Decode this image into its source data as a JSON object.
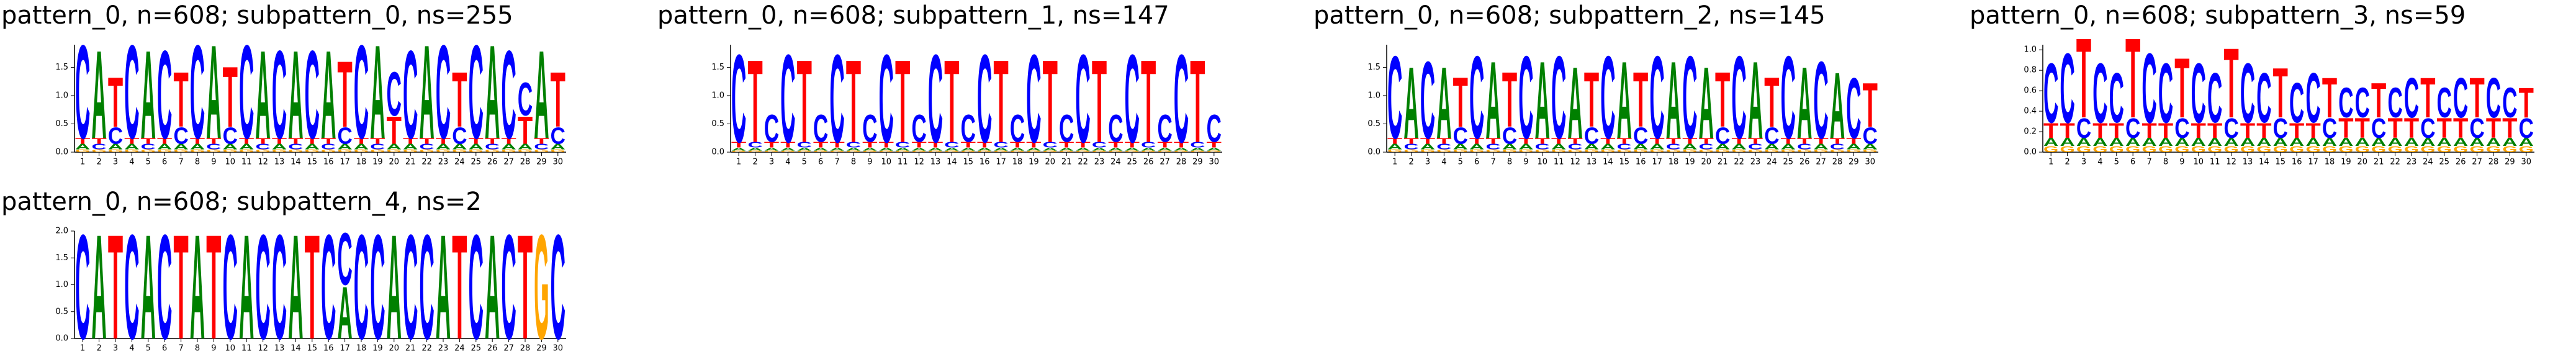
{
  "chart_data": [
    {
      "type": "logo",
      "title": "pattern_0, n=608; subpattern_0, ns=255",
      "xticks": [
        1,
        2,
        3,
        4,
        5,
        6,
        7,
        8,
        9,
        10,
        11,
        12,
        13,
        14,
        15,
        16,
        17,
        18,
        19,
        20,
        21,
        22,
        23,
        24,
        25,
        26,
        27,
        28,
        29,
        30
      ],
      "ylim": [
        0,
        1.9
      ],
      "yticks": [
        {
          "value": 0,
          "label": "0.0"
        },
        {
          "value": 0.5,
          "label": "0.5"
        },
        {
          "value": 1,
          "label": "1.0"
        },
        {
          "value": 1.5,
          "label": "1.5"
        }
      ],
      "series": [
        {
          "name": "A",
          "color": "#008000",
          "values": [
            0.1,
            1.6,
            0.1,
            0.1,
            1.6,
            0.1,
            0.1,
            0.1,
            1.7,
            0.1,
            0.1,
            1.6,
            0.1,
            1.6,
            0.1,
            1.6,
            0.1,
            0.1,
            1.7,
            0.1,
            0.1,
            1.7,
            0.1,
            0.1,
            0.1,
            1.7,
            0.1,
            0.1,
            1.6,
            0.1
          ]
        },
        {
          "name": "C",
          "color": "#0000ff",
          "values": [
            1.7,
            0.1,
            0.3,
            1.7,
            0.1,
            1.6,
            0.3,
            1.7,
            0.1,
            0.3,
            1.7,
            0.1,
            1.6,
            0.1,
            1.6,
            0.1,
            0.3,
            1.7,
            0.1,
            0.8,
            1.6,
            0.1,
            1.7,
            0.3,
            1.7,
            0.1,
            1.6,
            0.6,
            0.1,
            0.3
          ]
        },
        {
          "name": "G",
          "color": "#ffa500",
          "values": [
            0.05,
            0.05,
            0.05,
            0.05,
            0.05,
            0.05,
            0.05,
            0.05,
            0.05,
            0.05,
            0.05,
            0.05,
            0.05,
            0.05,
            0.05,
            0.05,
            0.05,
            0.05,
            0.05,
            0.05,
            0.05,
            0.05,
            0.05,
            0.05,
            0.05,
            0.05,
            0.05,
            0.05,
            0.05,
            0.05
          ]
        },
        {
          "name": "T",
          "color": "#ff0000",
          "values": [
            0.1,
            0.1,
            0.9,
            0.1,
            0.1,
            0.1,
            1.0,
            0.1,
            0.1,
            1.1,
            0.1,
            0.1,
            0.1,
            0.1,
            0.1,
            0.1,
            1.2,
            0.1,
            0.1,
            0.5,
            0.1,
            0.1,
            0.1,
            1.0,
            0.1,
            0.1,
            0.1,
            0.5,
            0.1,
            1.0
          ]
        }
      ]
    },
    {
      "type": "logo",
      "title": "pattern_0, n=608; subpattern_1, ns=147",
      "xticks": [
        1,
        2,
        3,
        4,
        5,
        6,
        7,
        8,
        9,
        10,
        11,
        12,
        13,
        14,
        15,
        16,
        17,
        18,
        19,
        20,
        21,
        22,
        23,
        24,
        25,
        26,
        27,
        28,
        29,
        30
      ],
      "ylim": [
        0,
        1.9
      ],
      "yticks": [
        {
          "value": 0,
          "label": "0.0"
        },
        {
          "value": 0.5,
          "label": "0.5"
        },
        {
          "value": 1,
          "label": "1.0"
        },
        {
          "value": 1.5,
          "label": "1.5"
        }
      ],
      "series": [
        {
          "name": "A",
          "color": "#008000",
          "values": [
            0.05,
            0.05,
            0.05,
            0.05,
            0.05,
            0.05,
            0.05,
            0.05,
            0.05,
            0.05,
            0.05,
            0.05,
            0.05,
            0.05,
            0.05,
            0.05,
            0.05,
            0.05,
            0.05,
            0.05,
            0.05,
            0.05,
            0.05,
            0.05,
            0.05,
            0.05,
            0.05,
            0.05,
            0.05,
            0.05
          ]
        },
        {
          "name": "C",
          "color": "#0000ff",
          "values": [
            1.6,
            0.1,
            0.5,
            1.6,
            0.1,
            0.5,
            1.6,
            0.1,
            0.5,
            1.6,
            0.1,
            0.5,
            1.6,
            0.1,
            0.5,
            1.6,
            0.1,
            0.5,
            1.6,
            0.1,
            0.5,
            1.6,
            0.1,
            0.5,
            1.6,
            0.1,
            0.5,
            1.6,
            0.1,
            0.5
          ]
        },
        {
          "name": "G",
          "color": "#ffa500",
          "values": [
            0.03,
            0.03,
            0.03,
            0.03,
            0.03,
            0.03,
            0.03,
            0.03,
            0.03,
            0.03,
            0.03,
            0.03,
            0.03,
            0.03,
            0.03,
            0.03,
            0.03,
            0.03,
            0.03,
            0.03,
            0.03,
            0.03,
            0.03,
            0.03,
            0.03,
            0.03,
            0.03,
            0.03,
            0.03,
            0.03
          ]
        },
        {
          "name": "T",
          "color": "#ff0000",
          "values": [
            0.1,
            1.5,
            0.1,
            0.1,
            1.5,
            0.1,
            0.1,
            1.5,
            0.1,
            0.1,
            1.5,
            0.1,
            0.1,
            1.5,
            0.1,
            0.1,
            1.5,
            0.1,
            0.1,
            1.5,
            0.1,
            0.1,
            1.5,
            0.1,
            0.1,
            1.5,
            0.1,
            0.1,
            1.5,
            0.1
          ]
        }
      ]
    },
    {
      "type": "logo",
      "title": "pattern_0, n=608; subpattern_2, ns=145",
      "xticks": [
        1,
        2,
        3,
        4,
        5,
        6,
        7,
        8,
        9,
        10,
        11,
        12,
        13,
        14,
        15,
        16,
        17,
        18,
        19,
        20,
        21,
        22,
        23,
        24,
        25,
        26,
        27,
        28,
        29,
        30
      ],
      "ylim": [
        0,
        1.9
      ],
      "yticks": [
        {
          "value": 0,
          "label": "0.0"
        },
        {
          "value": 0.5,
          "label": "0.5"
        },
        {
          "value": 1,
          "label": "1.0"
        },
        {
          "value": 1.5,
          "label": "1.5"
        }
      ],
      "series": [
        {
          "name": "A",
          "color": "#008000",
          "values": [
            0.1,
            1.3,
            0.1,
            1.3,
            0.1,
            0.1,
            1.4,
            0.1,
            0.1,
            1.4,
            0.1,
            1.3,
            0.1,
            0.1,
            1.4,
            0.1,
            0.1,
            1.4,
            0.1,
            1.3,
            0.1,
            0.1,
            1.4,
            0.1,
            0.1,
            1.3,
            0.1,
            1.2,
            0.1,
            0.1
          ]
        },
        {
          "name": "C",
          "color": "#0000ff",
          "values": [
            1.5,
            0.1,
            1.4,
            0.1,
            0.3,
            1.5,
            0.1,
            0.3,
            1.5,
            0.1,
            1.5,
            0.1,
            0.3,
            1.5,
            0.1,
            0.3,
            1.5,
            0.1,
            1.5,
            0.1,
            0.3,
            1.5,
            0.1,
            0.3,
            1.5,
            0.1,
            1.4,
            0.1,
            1.1,
            0.3
          ]
        },
        {
          "name": "G",
          "color": "#ffa500",
          "values": [
            0.05,
            0.05,
            0.05,
            0.05,
            0.05,
            0.05,
            0.05,
            0.05,
            0.05,
            0.05,
            0.05,
            0.05,
            0.05,
            0.05,
            0.05,
            0.05,
            0.05,
            0.05,
            0.05,
            0.05,
            0.05,
            0.05,
            0.05,
            0.05,
            0.05,
            0.05,
            0.05,
            0.05,
            0.05,
            0.05
          ]
        },
        {
          "name": "T",
          "color": "#ff0000",
          "values": [
            0.1,
            0.1,
            0.1,
            0.1,
            0.9,
            0.1,
            0.1,
            1.0,
            0.1,
            0.1,
            0.1,
            0.1,
            1.0,
            0.1,
            0.1,
            1.0,
            0.1,
            0.1,
            0.1,
            0.1,
            1.0,
            0.1,
            0.1,
            0.9,
            0.1,
            0.1,
            0.1,
            0.1,
            0.1,
            0.8
          ]
        }
      ]
    },
    {
      "type": "logo",
      "title": "pattern_0, n=608; subpattern_3, ns=59",
      "xticks": [
        1,
        2,
        3,
        4,
        5,
        6,
        7,
        8,
        9,
        10,
        11,
        12,
        13,
        14,
        15,
        16,
        17,
        18,
        19,
        20,
        21,
        22,
        23,
        24,
        25,
        26,
        27,
        28,
        29,
        30
      ],
      "ylim": [
        0,
        1.05
      ],
      "yticks": [
        {
          "value": 0,
          "label": "0.0"
        },
        {
          "value": 0.2,
          "label": "0.2"
        },
        {
          "value": 0.4,
          "label": "0.4"
        },
        {
          "value": 0.6,
          "label": "0.6"
        },
        {
          "value": 0.8,
          "label": "0.8"
        },
        {
          "value": 1,
          "label": "1.0"
        }
      ],
      "series": [
        {
          "name": "A",
          "color": "#008000",
          "values": [
            0.08,
            0.08,
            0.08,
            0.08,
            0.08,
            0.08,
            0.08,
            0.08,
            0.08,
            0.08,
            0.08,
            0.08,
            0.08,
            0.08,
            0.08,
            0.08,
            0.08,
            0.08,
            0.08,
            0.08,
            0.08,
            0.08,
            0.08,
            0.08,
            0.08,
            0.08,
            0.08,
            0.08,
            0.08,
            0.08
          ]
        },
        {
          "name": "C",
          "color": "#0000ff",
          "values": [
            0.6,
            0.7,
            0.2,
            0.6,
            0.5,
            0.2,
            0.7,
            0.6,
            0.2,
            0.6,
            0.5,
            0.2,
            0.6,
            0.5,
            0.2,
            0.4,
            0.5,
            0.2,
            0.3,
            0.3,
            0.2,
            0.3,
            0.4,
            0.2,
            0.3,
            0.4,
            0.2,
            0.4,
            0.3,
            0.2
          ]
        },
        {
          "name": "G",
          "color": "#ffa500",
          "values": [
            0.06,
            0.06,
            0.06,
            0.06,
            0.06,
            0.06,
            0.06,
            0.06,
            0.06,
            0.06,
            0.06,
            0.06,
            0.06,
            0.06,
            0.06,
            0.06,
            0.06,
            0.06,
            0.06,
            0.06,
            0.06,
            0.06,
            0.06,
            0.06,
            0.06,
            0.06,
            0.06,
            0.06,
            0.06,
            0.06
          ]
        },
        {
          "name": "T",
          "color": "#ff0000",
          "values": [
            0.15,
            0.15,
            0.8,
            0.15,
            0.15,
            0.8,
            0.15,
            0.15,
            0.6,
            0.15,
            0.15,
            0.7,
            0.15,
            0.15,
            0.5,
            0.15,
            0.15,
            0.4,
            0.2,
            0.2,
            0.35,
            0.2,
            0.2,
            0.4,
            0.2,
            0.2,
            0.4,
            0.2,
            0.2,
            0.3
          ]
        }
      ]
    },
    {
      "type": "logo",
      "title": "pattern_0, n=608; subpattern_4, ns=2",
      "xticks": [
        1,
        2,
        3,
        4,
        5,
        6,
        7,
        8,
        9,
        10,
        11,
        12,
        13,
        14,
        15,
        16,
        17,
        18,
        19,
        20,
        21,
        22,
        23,
        24,
        25,
        26,
        27,
        28,
        29,
        30
      ],
      "ylim": [
        0,
        2
      ],
      "yticks": [
        {
          "value": 0,
          "label": "0.0"
        },
        {
          "value": 0.5,
          "label": "0.5"
        },
        {
          "value": 1,
          "label": "1.0"
        },
        {
          "value": 1.5,
          "label": "1.5"
        },
        {
          "value": 2,
          "label": "2.0"
        }
      ],
      "series": [
        {
          "name": "A",
          "color": "#008000",
          "values": [
            0,
            2,
            0,
            0,
            2,
            0,
            0,
            2,
            0,
            0,
            2,
            0,
            0,
            2,
            0,
            0,
            1,
            0,
            0,
            2,
            0,
            0,
            2,
            0,
            0,
            2,
            0,
            0,
            0,
            0
          ]
        },
        {
          "name": "C",
          "color": "#0000ff",
          "values": [
            2,
            0,
            0,
            2,
            0,
            2,
            0,
            0,
            0,
            2,
            0,
            2,
            2,
            0,
            0,
            2,
            1,
            2,
            2,
            0,
            2,
            2,
            0,
            0,
            2,
            0,
            2,
            0,
            0,
            2
          ]
        },
        {
          "name": "G",
          "color": "#ffa500",
          "values": [
            0,
            0,
            0,
            0,
            0,
            0,
            0,
            0,
            0,
            0,
            0,
            0,
            0,
            0,
            0,
            0,
            0,
            0,
            0,
            0,
            0,
            0,
            0,
            0,
            0,
            0,
            0,
            0,
            2,
            0
          ]
        },
        {
          "name": "T",
          "color": "#ff0000",
          "values": [
            0,
            0,
            2,
            0,
            0,
            0,
            2,
            0,
            2,
            0,
            0,
            0,
            0,
            0,
            2,
            0,
            0,
            0,
            0,
            0,
            0,
            0,
            0,
            2,
            0,
            0,
            0,
            2,
            0,
            0
          ]
        }
      ]
    }
  ]
}
